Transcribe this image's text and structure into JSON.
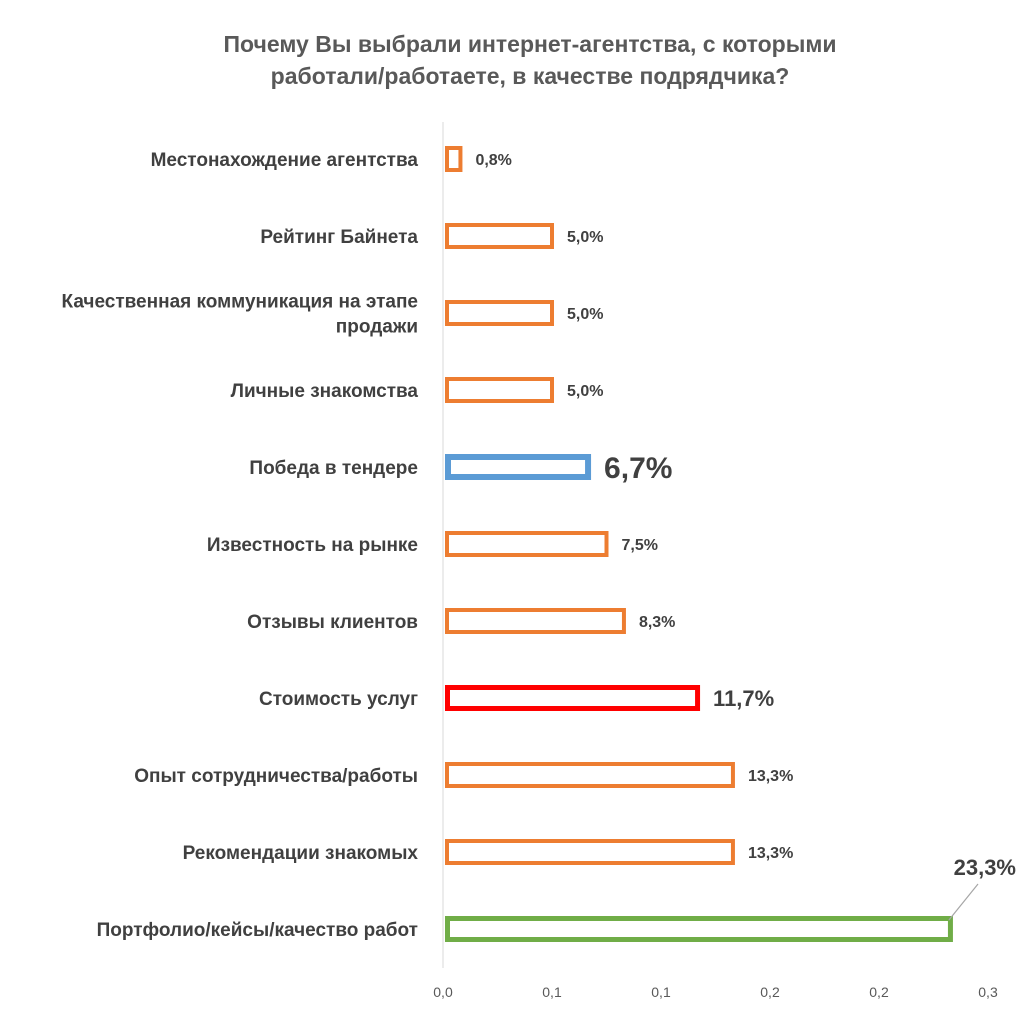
{
  "chart_data": {
    "type": "bar",
    "orientation": "horizontal",
    "title_lines": [
      "Почему Вы выбрали интернет-агентства, с которыми",
      "работали/работаете, в  качестве подрядчика?"
    ],
    "categories": [
      "Местонахождение агентства",
      "Рейтинг Байнета",
      "Качественная коммуникация на этапе продажи",
      "Личные знакомства",
      "Победа в тендере",
      "Известность на рынке",
      "Отзывы клиентов",
      "Стоимость услуг",
      "Опыт сотрудничества/работы",
      "Рекомендации знакомых",
      "Портфолио/кейсы/качество работ"
    ],
    "category_lines": [
      [
        "Местонахождение агентства"
      ],
      [
        "Рейтинг Байнета"
      ],
      [
        "Качественная коммуникация на этапе",
        "продажи"
      ],
      [
        "Личные знакомства"
      ],
      [
        "Победа в тендере"
      ],
      [
        "Известность на рынке"
      ],
      [
        "Отзывы клиентов"
      ],
      [
        "Стоимость услуг"
      ],
      [
        "Опыт сотрудничества/работы"
      ],
      [
        "Рекомендации знакомых"
      ],
      [
        "Портфолио/кейсы/качество работ"
      ]
    ],
    "values": [
      0.008,
      0.05,
      0.05,
      0.05,
      0.067,
      0.075,
      0.083,
      0.117,
      0.133,
      0.133,
      0.233
    ],
    "data_labels": [
      "0,8%",
      "5,0%",
      "5,0%",
      "5,0%",
      "6,7%",
      "7,5%",
      "8,3%",
      "11,7%",
      "13,3%",
      "13,3%",
      "23,3%"
    ],
    "bar_colors": [
      "#ED7D31",
      "#ED7D31",
      "#ED7D31",
      "#ED7D31",
      "#5B9BD5",
      "#ED7D31",
      "#ED7D31",
      "#FF0000",
      "#ED7D31",
      "#ED7D31",
      "#70AD47"
    ],
    "emphasis": [
      "normal",
      "normal",
      "normal",
      "normal",
      "large",
      "normal",
      "normal",
      "medium",
      "normal",
      "normal",
      "medium"
    ],
    "x_ticks": [
      0,
      0.05,
      0.1,
      0.15,
      0.2,
      0.25
    ],
    "x_tick_labels": [
      "0,0",
      "0,1",
      "0,1",
      "0,2",
      "0,2",
      "0,3"
    ],
    "xlim": [
      0,
      0.25
    ],
    "xlabel": "",
    "ylabel": "",
    "grid": false,
    "legend": "none"
  }
}
